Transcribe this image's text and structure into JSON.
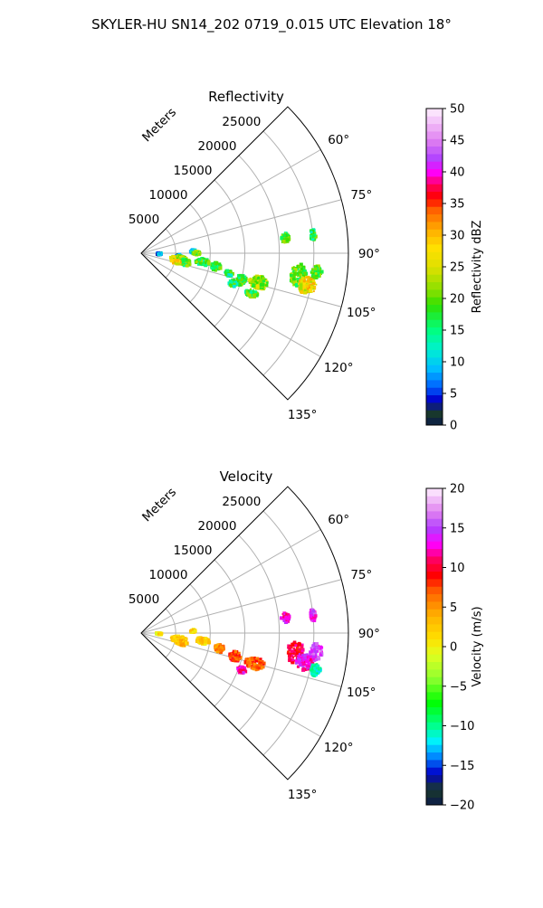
{
  "figure": {
    "suptitle": "SKYLER-HU  SN14_202  0719_0.015 UTC Elevation 18°"
  },
  "chart_data": [
    {
      "type": "polar-ppi",
      "title": "Reflectivity",
      "radial_axis_label": "Meters",
      "radial_ticks": [
        "5000",
        "10000",
        "15000",
        "20000",
        "25000"
      ],
      "radial_tick_values": [
        5000,
        10000,
        15000,
        20000,
        25000
      ],
      "r_max": 30000,
      "theta_range_deg": [
        45,
        135
      ],
      "theta_ticks": [
        "60°",
        "75°",
        "90°",
        "105°",
        "120°",
        "135°"
      ],
      "theta_tick_values": [
        60,
        75,
        90,
        105,
        120,
        135
      ],
      "grid": true,
      "colorbar": {
        "label": "Reflectivity dBZ",
        "ticks": [
          "0",
          "5",
          "10",
          "15",
          "20",
          "25",
          "30",
          "35",
          "40",
          "45",
          "50"
        ],
        "range": [
          0,
          50
        ],
        "stops": [
          {
            "v": 0,
            "c": "#0b1a4a"
          },
          {
            "v": 2,
            "c": "#1a3a2a"
          },
          {
            "v": 4,
            "c": "#0000cc"
          },
          {
            "v": 6,
            "c": "#0060ff"
          },
          {
            "v": 9,
            "c": "#00bfff"
          },
          {
            "v": 12,
            "c": "#00f0d0"
          },
          {
            "v": 15,
            "c": "#00ff80"
          },
          {
            "v": 19,
            "c": "#30e000"
          },
          {
            "v": 21,
            "c": "#80e000"
          },
          {
            "v": 25,
            "c": "#e0e000"
          },
          {
            "v": 28,
            "c": "#ffe000"
          },
          {
            "v": 31,
            "c": "#ffaa00"
          },
          {
            "v": 34,
            "c": "#ff6000"
          },
          {
            "v": 36,
            "c": "#ff0000"
          },
          {
            "v": 38,
            "c": "#ff0060"
          },
          {
            "v": 40,
            "c": "#ff00ff"
          },
          {
            "v": 42,
            "c": "#b040ff"
          },
          {
            "v": 45,
            "c": "#e080f0"
          },
          {
            "v": 50,
            "c": "#fff0ff"
          }
        ]
      },
      "echoes": [
        {
          "theta": 92,
          "r": 2600,
          "sr": 400,
          "st": 3,
          "value": 8
        },
        {
          "theta": 95,
          "r": 5500,
          "sr": 500,
          "st": 3,
          "value": 6
        },
        {
          "theta": 88,
          "r": 7500,
          "sr": 400,
          "st": 2,
          "value": 10
        },
        {
          "theta": 90,
          "r": 8000,
          "sr": 500,
          "st": 2,
          "value": 22
        },
        {
          "theta": 99,
          "r": 5500,
          "sr": 1200,
          "st": 5,
          "value": 24
        },
        {
          "theta": 102,
          "r": 6500,
          "sr": 800,
          "st": 4,
          "value": 19
        },
        {
          "theta": 104,
          "r": 5200,
          "sr": 800,
          "st": 3,
          "value": 27
        },
        {
          "theta": 98,
          "r": 9000,
          "sr": 1000,
          "st": 3,
          "value": 18
        },
        {
          "theta": 100,
          "r": 11000,
          "sr": 700,
          "st": 3,
          "value": 17
        },
        {
          "theta": 103,
          "r": 13000,
          "sr": 600,
          "st": 2,
          "value": 16
        },
        {
          "theta": 105,
          "r": 15000,
          "sr": 700,
          "st": 3,
          "value": 17
        },
        {
          "theta": 104,
          "r": 17500,
          "sr": 1400,
          "st": 3,
          "value": 22
        },
        {
          "theta": 108,
          "r": 14000,
          "sr": 600,
          "st": 2,
          "value": 16
        },
        {
          "theta": 110,
          "r": 17000,
          "sr": 900,
          "st": 2,
          "value": 18
        },
        {
          "theta": 98,
          "r": 23000,
          "sr": 1200,
          "st": 4,
          "value": 20
        },
        {
          "theta": 101,
          "r": 24500,
          "sr": 1300,
          "st": 3,
          "value": 27
        },
        {
          "theta": 96,
          "r": 25500,
          "sr": 800,
          "st": 2,
          "value": 19
        },
        {
          "theta": 84,
          "r": 21000,
          "sr": 600,
          "st": 2,
          "value": 18
        },
        {
          "theta": 84,
          "r": 25000,
          "sr": 400,
          "st": 2,
          "value": 17
        }
      ]
    },
    {
      "type": "polar-ppi",
      "title": "Velocity",
      "radial_axis_label": "Meters",
      "radial_ticks": [
        "5000",
        "10000",
        "15000",
        "20000",
        "25000"
      ],
      "radial_tick_values": [
        5000,
        10000,
        15000,
        20000,
        25000
      ],
      "r_max": 30000,
      "theta_range_deg": [
        45,
        135
      ],
      "theta_ticks": [
        "60°",
        "75°",
        "90°",
        "105°",
        "120°",
        "135°"
      ],
      "theta_tick_values": [
        60,
        75,
        90,
        105,
        120,
        135
      ],
      "grid": true,
      "colorbar": {
        "label": "Velocity (m/s)",
        "ticks": [
          "−20",
          "−15",
          "−10",
          "−5",
          "0",
          "5",
          "10",
          "15",
          "20"
        ],
        "range": [
          -20,
          20
        ],
        "stops": [
          {
            "v": -20,
            "c": "#0b1a4a"
          },
          {
            "v": -18,
            "c": "#1a3a2a"
          },
          {
            "v": -16,
            "c": "#0000cc"
          },
          {
            "v": -14,
            "c": "#0080ff"
          },
          {
            "v": -12,
            "c": "#00f0ff"
          },
          {
            "v": -10,
            "c": "#00ff90"
          },
          {
            "v": -7,
            "c": "#00ff00"
          },
          {
            "v": -4,
            "c": "#90ff30"
          },
          {
            "v": -1,
            "c": "#e0ff20"
          },
          {
            "v": 1,
            "c": "#ffe000"
          },
          {
            "v": 4,
            "c": "#ffb000"
          },
          {
            "v": 7,
            "c": "#ff6000"
          },
          {
            "v": 9,
            "c": "#ff0000"
          },
          {
            "v": 11,
            "c": "#ff0060"
          },
          {
            "v": 13,
            "c": "#ff00ff"
          },
          {
            "v": 15,
            "c": "#b040ff"
          },
          {
            "v": 17,
            "c": "#e080f0"
          },
          {
            "v": 20,
            "c": "#fff0ff"
          }
        ]
      },
      "echoes": [
        {
          "theta": 92,
          "r": 2600,
          "sr": 400,
          "st": 3,
          "value": 1
        },
        {
          "theta": 88,
          "r": 7500,
          "sr": 400,
          "st": 2,
          "value": 2
        },
        {
          "theta": 99,
          "r": 5500,
          "sr": 1200,
          "st": 5,
          "value": 2
        },
        {
          "theta": 103,
          "r": 6000,
          "sr": 900,
          "st": 4,
          "value": 3
        },
        {
          "theta": 97,
          "r": 9000,
          "sr": 1000,
          "st": 3,
          "value": 2
        },
        {
          "theta": 101,
          "r": 11500,
          "sr": 700,
          "st": 3,
          "value": 5
        },
        {
          "theta": 104,
          "r": 14000,
          "sr": 800,
          "st": 3,
          "value": 8
        },
        {
          "theta": 105,
          "r": 17000,
          "sr": 1400,
          "st": 3,
          "value": 7
        },
        {
          "theta": 110,
          "r": 15500,
          "sr": 600,
          "st": 2,
          "value": 12
        },
        {
          "theta": 97,
          "r": 22500,
          "sr": 1200,
          "st": 4,
          "value": 10
        },
        {
          "theta": 100,
          "r": 24000,
          "sr": 1300,
          "st": 3,
          "value": 13
        },
        {
          "theta": 96,
          "r": 25500,
          "sr": 900,
          "st": 3,
          "value": 15
        },
        {
          "theta": 102,
          "r": 25800,
          "sr": 700,
          "st": 2,
          "value": -11
        },
        {
          "theta": 84,
          "r": 21000,
          "sr": 600,
          "st": 2,
          "value": 13
        },
        {
          "theta": 84,
          "r": 25000,
          "sr": 400,
          "st": 2,
          "value": 14
        }
      ]
    }
  ]
}
